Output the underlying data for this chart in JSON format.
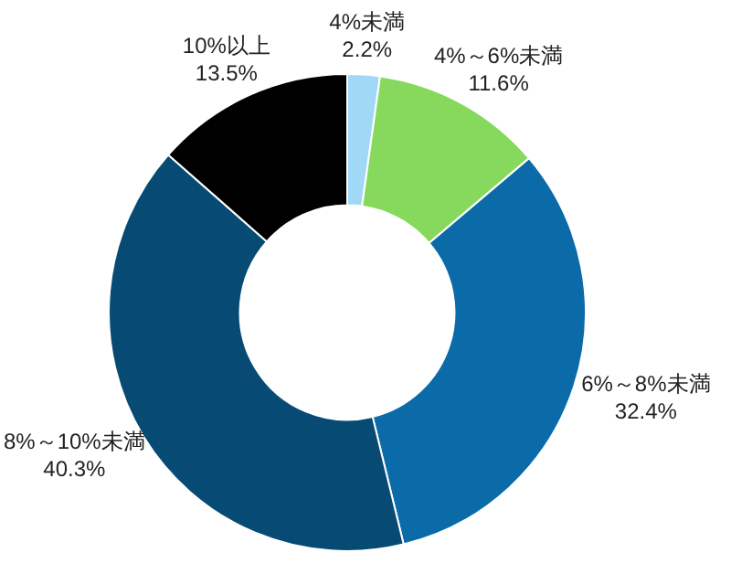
{
  "chart_data": {
    "type": "donut",
    "categories": [
      "4%未満",
      "4%～6%未満",
      "6%～8%未満",
      "8%～10%未満",
      "10%以上"
    ],
    "values": [
      2.2,
      11.6,
      32.4,
      40.3,
      13.5
    ],
    "colors": [
      "#a0d8f6",
      "#86d95c",
      "#0b6aa8",
      "#074b74",
      "#000000"
    ],
    "value_labels": [
      "2.2%",
      "11.6%",
      "32.4%",
      "40.3%",
      "13.5%"
    ]
  }
}
